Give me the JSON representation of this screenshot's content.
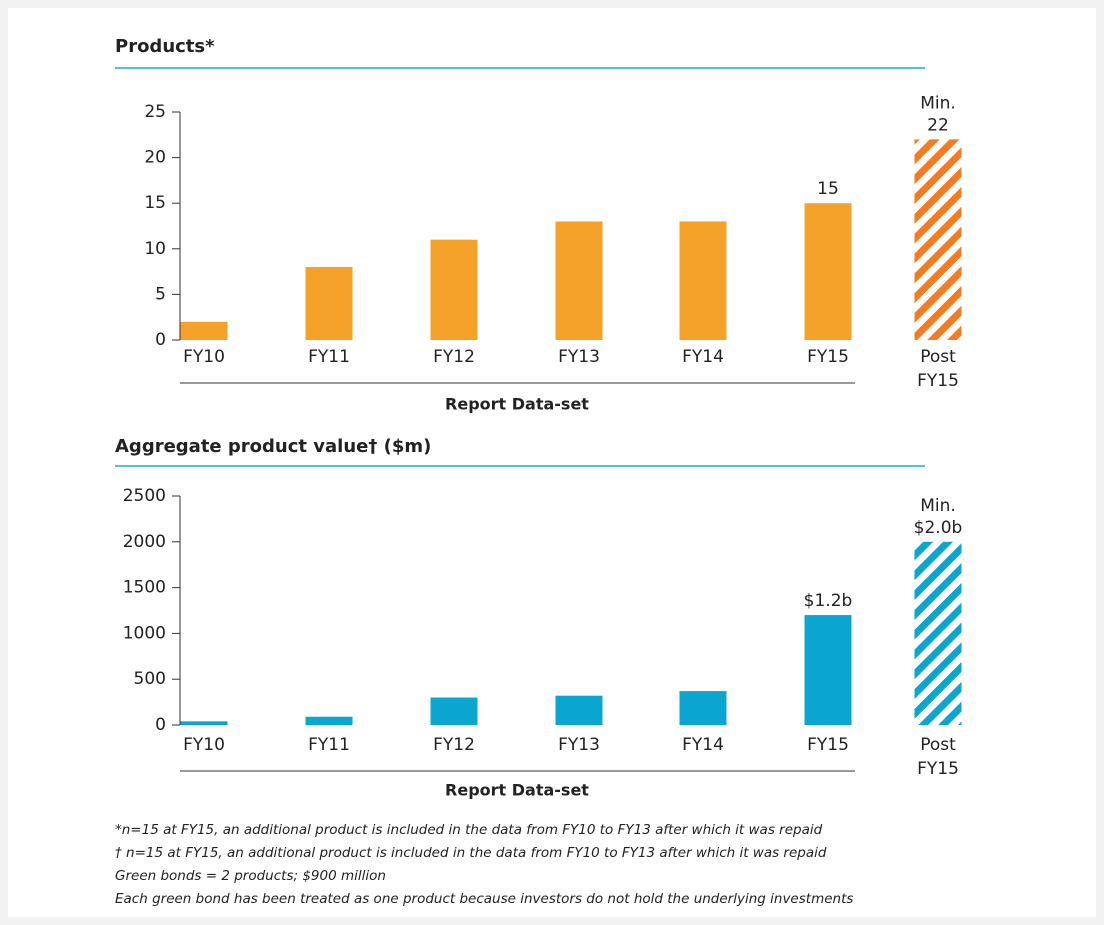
{
  "chart_data": [
    {
      "type": "bar",
      "title": "Products*",
      "xlabel": "Report Data-set",
      "categories": [
        "FY10",
        "FY11",
        "FY12",
        "FY13",
        "FY14",
        "FY15",
        "Post FY15"
      ],
      "values": [
        2,
        8,
        11,
        13,
        13,
        15,
        22
      ],
      "value_labels": [
        null,
        null,
        null,
        null,
        null,
        "15",
        "Min. 22"
      ],
      "hatched": [
        false,
        false,
        false,
        false,
        false,
        false,
        true
      ],
      "color": "#f5a22a",
      "hatch_color": "#f47b20",
      "ylim": [
        0,
        25
      ],
      "yticks": [
        0,
        5,
        10,
        15,
        20,
        25
      ]
    },
    {
      "type": "bar",
      "title": "Aggregate product value† ($m)",
      "xlabel": "Report Data-set",
      "categories": [
        "FY10",
        "FY11",
        "FY12",
        "FY13",
        "FY14",
        "FY15",
        "Post FY15"
      ],
      "values": [
        40,
        90,
        300,
        320,
        370,
        1200,
        2000
      ],
      "value_labels": [
        null,
        null,
        null,
        null,
        null,
        "$1.2b",
        "Min. $2.0b"
      ],
      "hatched": [
        false,
        false,
        false,
        false,
        false,
        false,
        true
      ],
      "color": "#0aa6cf",
      "hatch_color": "#0aa6cf",
      "ylim": [
        0,
        2500
      ],
      "yticks": [
        0,
        500,
        1000,
        1500,
        2000,
        2500
      ]
    }
  ],
  "footnotes": [
    "*n=15 at FY15, an additional product is included in the data from FY10 to FY13 after which it was repaid",
    "† n=15 at FY15, an additional product is included in the data from FY10 to FY13 after which it was repaid",
    "Green bonds = 2 products; $900 million",
    "Each green bond has been treated as one product because investors do not hold the underlying investments"
  ]
}
